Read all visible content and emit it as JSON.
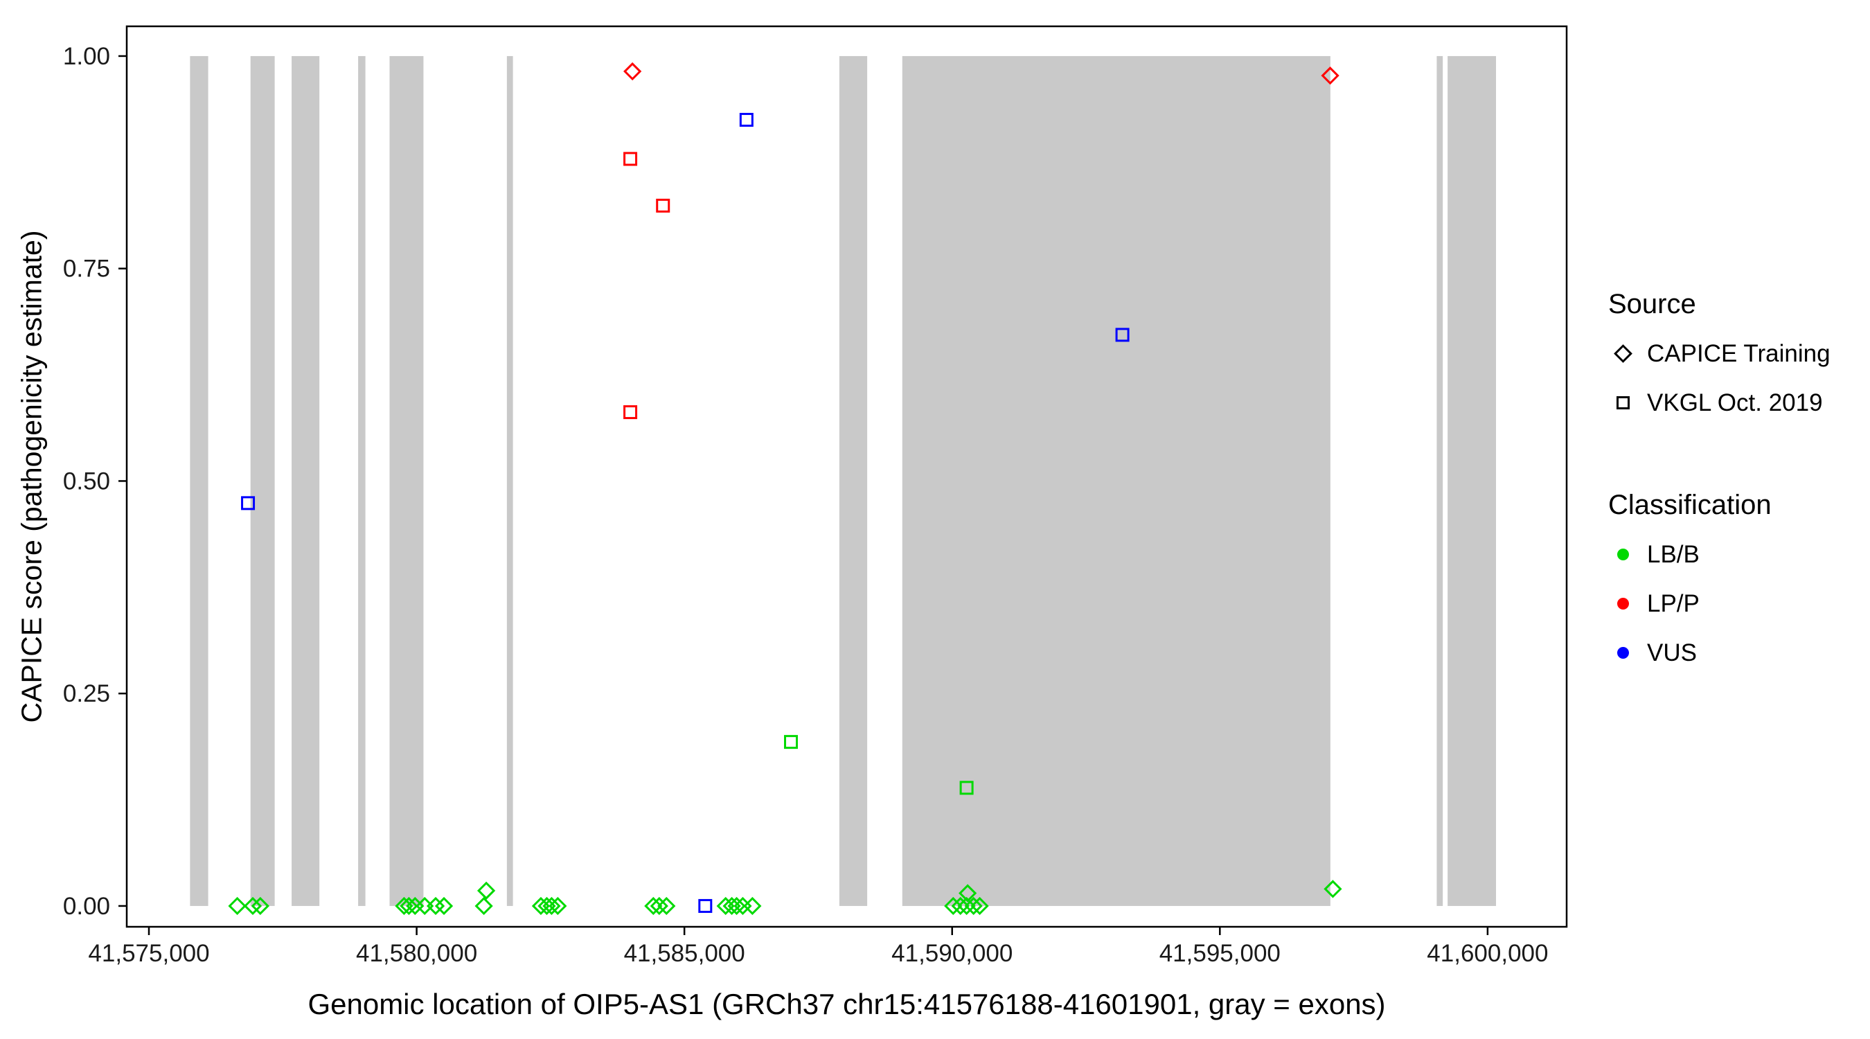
{
  "chart_data": {
    "type": "scatter",
    "title": "",
    "xlabel": "Genomic location of OIP5-AS1 (GRCh37 chr15:41576188-41601901, gray = exons)",
    "ylabel": "CAPICE score (pathogenicity estimate)",
    "xlim": [
      41574586,
      41601476
    ],
    "ylim": [
      -0.0245,
      1.035
    ],
    "grid": false,
    "legend_position": "right",
    "x_ticks": [
      {
        "value": 41575000,
        "label": "41,575,000"
      },
      {
        "value": 41580000,
        "label": "41,580,000"
      },
      {
        "value": 41585000,
        "label": "41,585,000"
      },
      {
        "value": 41590000,
        "label": "41,590,000"
      },
      {
        "value": 41595000,
        "label": "41,595,000"
      },
      {
        "value": 41600000,
        "label": "41,600,000"
      }
    ],
    "y_ticks": [
      {
        "value": 0,
        "label": "0.00"
      },
      {
        "value": 0.25,
        "label": "0.25"
      },
      {
        "value": 0.5,
        "label": "0.50"
      },
      {
        "value": 0.75,
        "label": "0.75"
      },
      {
        "value": 1,
        "label": "1.00"
      }
    ],
    "exon_band_y": [
      0,
      1
    ],
    "exons": [
      [
        41575768,
        41576107
      ],
      [
        41576897,
        41577349
      ],
      [
        41577665,
        41578184
      ],
      [
        41578907,
        41579043
      ],
      [
        41579494,
        41580127
      ],
      [
        41581685,
        41581798
      ],
      [
        41587894,
        41588414
      ],
      [
        41589069,
        41597064
      ],
      [
        41599050,
        41599163
      ],
      [
        41599253,
        41600157
      ]
    ],
    "colors": {
      "LB/B": "#00D900",
      "LP/P": "#FF0000",
      "VUS": "#0000FF",
      "exon": "#C9C9C9"
    },
    "series": [
      {
        "name": "CAPICE Training - LB/B",
        "source": "CAPICE Training",
        "classification": "LB/B",
        "shape": "diamond",
        "points": [
          [
            41576650,
            0
          ],
          [
            41576940,
            0
          ],
          [
            41577080,
            0
          ],
          [
            41579765,
            0
          ],
          [
            41579855,
            0
          ],
          [
            41579970,
            0
          ],
          [
            41580150,
            0
          ],
          [
            41580355,
            0
          ],
          [
            41580510,
            0
          ],
          [
            41581255,
            0
          ],
          [
            41581300,
            0.018
          ],
          [
            41582320,
            0
          ],
          [
            41582430,
            0
          ],
          [
            41582520,
            0
          ],
          [
            41582635,
            0
          ],
          [
            41584420,
            0
          ],
          [
            41584530,
            0
          ],
          [
            41584665,
            0
          ],
          [
            41585770,
            0
          ],
          [
            41585885,
            0
          ],
          [
            41585975,
            0
          ],
          [
            41586090,
            0
          ],
          [
            41586270,
            0
          ],
          [
            41590020,
            0
          ],
          [
            41590155,
            0
          ],
          [
            41590270,
            0
          ],
          [
            41590290,
            0.015
          ],
          [
            41590400,
            0
          ],
          [
            41590515,
            0
          ],
          [
            41597110,
            0.02
          ]
        ]
      },
      {
        "name": "CAPICE Training - LP/P",
        "source": "CAPICE Training",
        "classification": "LP/P",
        "shape": "diamond",
        "points": [
          [
            41584030,
            0.982
          ],
          [
            41597060,
            0.977
          ]
        ]
      },
      {
        "name": "VKGL Oct. 2019 - LB/B",
        "source": "VKGL Oct. 2019",
        "classification": "LB/B",
        "shape": "square",
        "points": [
          [
            41586990,
            0.193
          ],
          [
            41590270,
            0.139
          ]
        ]
      },
      {
        "name": "VKGL Oct. 2019 - LP/P",
        "source": "VKGL Oct. 2019",
        "classification": "LP/P",
        "shape": "square",
        "points": [
          [
            41583990,
            0.879
          ],
          [
            41584600,
            0.824
          ],
          [
            41583990,
            0.581
          ]
        ]
      },
      {
        "name": "VKGL Oct. 2019 - VUS",
        "source": "VKGL Oct. 2019",
        "classification": "VUS",
        "shape": "square",
        "points": [
          [
            41576850,
            0.474
          ],
          [
            41585390,
            0
          ],
          [
            41586160,
            0.925
          ],
          [
            41593180,
            0.672
          ]
        ]
      }
    ],
    "legend": {
      "source": {
        "title": "Source",
        "items": [
          {
            "symbol": "diamond",
            "label": "CAPICE Training"
          },
          {
            "symbol": "square",
            "label": "VKGL Oct. 2019"
          }
        ]
      },
      "classification": {
        "title": "Classification",
        "items": [
          {
            "color_key": "LB/B",
            "label": "LB/B"
          },
          {
            "color_key": "LP/P",
            "label": "LP/P"
          },
          {
            "color_key": "VUS",
            "label": "VUS"
          }
        ]
      }
    }
  }
}
